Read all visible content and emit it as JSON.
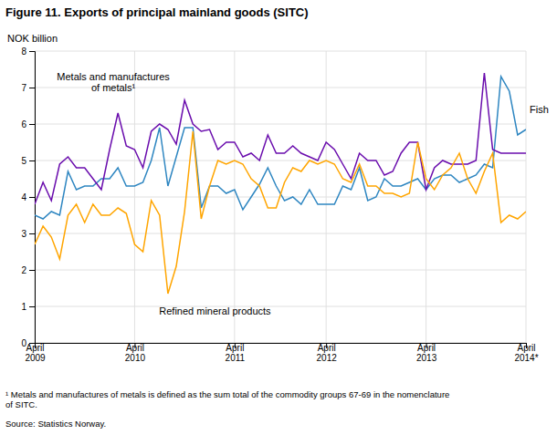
{
  "chart_data": {
    "type": "line",
    "title": "Figure 11. Exports of principal mainland goods (SITC)",
    "y_label": "NOK billion",
    "footnotes": [
      "¹ Metals and manufactures of metals is defined as the sum total of the commodity groups 67-69 in the nomenclature\nof SITC.",
      "Source: Statistics Norway."
    ],
    "categories": [
      "April\n2009",
      null,
      null,
      null,
      null,
      null,
      null,
      null,
      null,
      null,
      null,
      null,
      "April\n2010",
      null,
      null,
      null,
      null,
      null,
      null,
      null,
      null,
      null,
      null,
      null,
      "April\n2011",
      null,
      null,
      null,
      null,
      null,
      null,
      null,
      null,
      null,
      null,
      "April\n2012",
      null,
      null,
      null,
      null,
      null,
      null,
      null,
      null,
      null,
      null,
      null,
      "April\n2013",
      null,
      null,
      null,
      null,
      null,
      null,
      null,
      null,
      null,
      null,
      null,
      "April\n2014*"
    ],
    "series": [
      {
        "name": "Fish",
        "color": "#2E86C1",
        "values": [
          3.5,
          3.4,
          3.6,
          3.5,
          4.7,
          4.2,
          4.3,
          4.3,
          4.5,
          4.5,
          4.8,
          4.3,
          4.3,
          4.4,
          5.0,
          5.9,
          4.3,
          5.1,
          5.9,
          5.9,
          3.7,
          4.3,
          4.3,
          4.1,
          4.2,
          3.65,
          4.0,
          4.35,
          4.8,
          4.3,
          3.9,
          4.0,
          3.8,
          4.2,
          3.8,
          3.8,
          3.8,
          4.3,
          4.2,
          4.8,
          3.9,
          4.0,
          4.5,
          4.3,
          4.3,
          4.4,
          4.5,
          4.2,
          4.5,
          4.6,
          4.6,
          4.4,
          4.5,
          4.6,
          4.9,
          4.8,
          7.3,
          6.9,
          5.7,
          5.85
        ]
      },
      {
        "name": "Metals and manufactures\nof metals¹",
        "color": "#6A0DAD",
        "values": [
          3.8,
          4.4,
          3.9,
          4.9,
          5.1,
          4.8,
          4.8,
          4.5,
          4.2,
          5.3,
          6.3,
          5.4,
          5.3,
          4.8,
          5.8,
          6.0,
          5.85,
          5.45,
          6.65,
          6.0,
          5.8,
          5.85,
          5.3,
          5.5,
          5.5,
          5.1,
          5.2,
          5.0,
          5.7,
          5.2,
          5.2,
          5.4,
          5.2,
          5.1,
          5.0,
          5.5,
          5.3,
          4.9,
          4.5,
          5.2,
          5.0,
          5.0,
          4.6,
          4.7,
          5.2,
          5.5,
          5.5,
          4.2,
          4.8,
          5.0,
          4.9,
          4.9,
          4.9,
          5.0,
          7.4,
          5.3,
          5.2,
          5.2,
          5.2,
          5.2
        ]
      },
      {
        "name": "Refined mineral products",
        "color": "#FFA500",
        "values": [
          2.7,
          3.2,
          2.9,
          2.3,
          3.5,
          3.8,
          3.3,
          3.8,
          3.5,
          3.5,
          3.7,
          3.55,
          2.7,
          2.5,
          3.9,
          3.5,
          1.35,
          2.1,
          3.6,
          5.8,
          3.4,
          4.3,
          5.0,
          4.9,
          5.0,
          4.9,
          4.5,
          4.3,
          3.7,
          3.7,
          4.4,
          4.8,
          4.7,
          5.0,
          4.9,
          5.0,
          4.9,
          4.5,
          4.4,
          4.9,
          4.3,
          4.3,
          4.1,
          4.1,
          4.0,
          4.1,
          5.5,
          4.5,
          4.2,
          4.6,
          4.8,
          5.2,
          4.5,
          4.1,
          4.7,
          5.2,
          3.3,
          3.5,
          3.4,
          3.6
        ]
      }
    ],
    "ylim": [
      0,
      8
    ],
    "yticks": [
      0,
      1,
      2,
      3,
      4,
      5,
      6,
      7,
      8
    ],
    "grid": true
  }
}
